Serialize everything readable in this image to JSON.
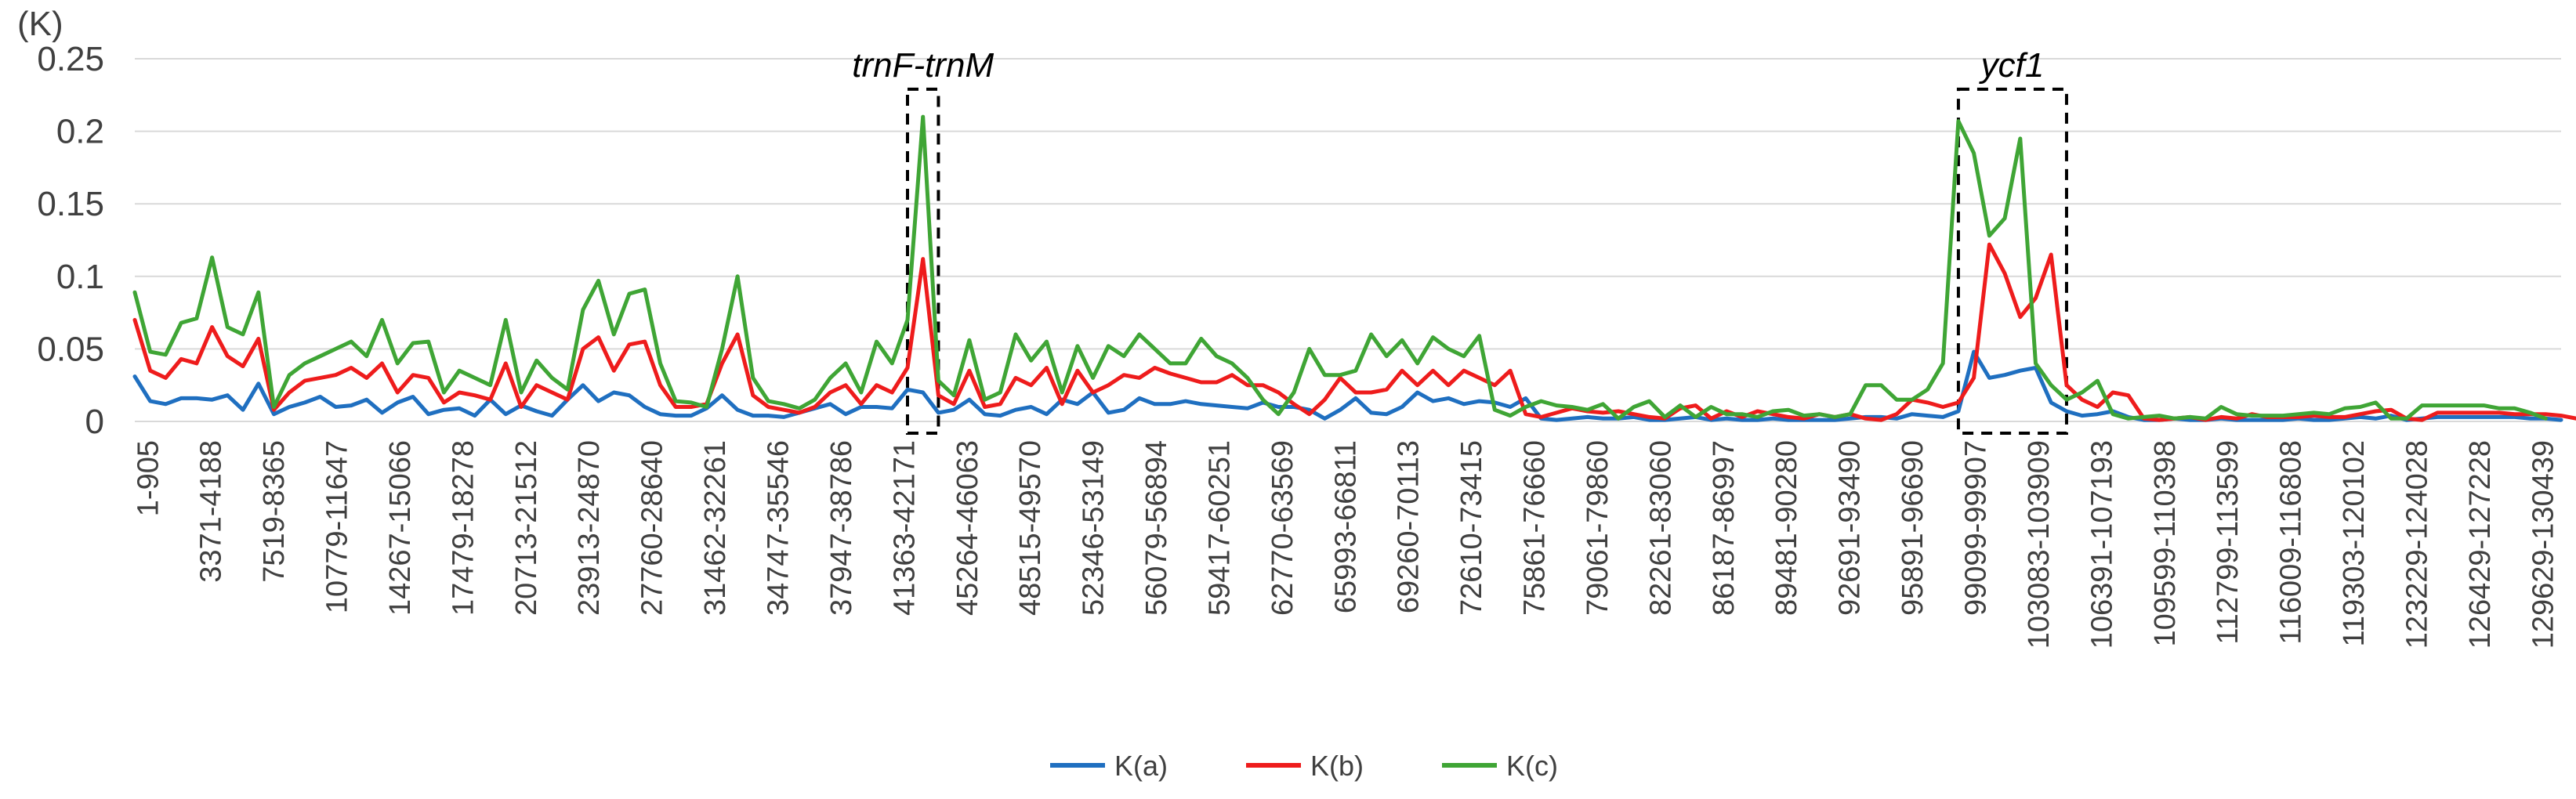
{
  "chart_data": {
    "type": "line",
    "y_unit_label": "(K)",
    "ylim": [
      0,
      0.25
    ],
    "yticks": [
      "0",
      "0.05",
      "0.1",
      "0.15",
      "0.2",
      "0.25"
    ],
    "grid": true,
    "legend_position": "bottom",
    "x_tick_labels": [
      "1-905",
      "3371-4188",
      "7519-8365",
      "10779-11647",
      "14267-15066",
      "17479-18278",
      "20713-21512",
      "23913-24870",
      "27760-28640",
      "31462-32261",
      "34747-35546",
      "37947-38786",
      "41363-42171",
      "45264-46063",
      "48515-49570",
      "52346-53149",
      "56079-56894",
      "59417-60251",
      "62770-63569",
      "65993-66811",
      "69260-70113",
      "72610-73415",
      "75861-76660",
      "79061-79860",
      "82261-83060",
      "86187-86997",
      "89481-90280",
      "92691-93490",
      "95891-96690",
      "99099-99907",
      "103083-103909",
      "106391-107193",
      "109599-110398",
      "112799-113599",
      "116009-116808",
      "119303-120102",
      "123229-124028",
      "126429-127228",
      "129629-130439"
    ],
    "series": [
      {
        "name": "K(a)",
        "color": "#1f6fc0",
        "values": [
          0.031,
          0.014,
          0.012,
          0.016,
          0.016,
          0.015,
          0.018,
          0.008,
          0.026,
          0.005,
          0.01,
          0.013,
          0.017,
          0.01,
          0.011,
          0.015,
          0.006,
          0.013,
          0.017,
          0.005,
          0.008,
          0.009,
          0.004,
          0.015,
          0.005,
          0.011,
          0.007,
          0.004,
          0.015,
          0.025,
          0.014,
          0.02,
          0.018,
          0.01,
          0.005,
          0.004,
          0.004,
          0.009,
          0.018,
          0.008,
          0.004,
          0.004,
          0.003,
          0.006,
          0.009,
          0.012,
          0.005,
          0.01,
          0.01,
          0.009,
          0.022,
          0.02,
          0.006,
          0.008,
          0.015,
          0.005,
          0.004,
          0.008,
          0.01,
          0.005,
          0.015,
          0.012,
          0.02,
          0.006,
          0.008,
          0.016,
          0.012,
          0.012,
          0.014,
          0.012,
          0.011,
          0.01,
          0.009,
          0.013,
          0.01,
          0.01,
          0.008,
          0.002,
          0.008,
          0.016,
          0.006,
          0.005,
          0.01,
          0.02,
          0.014,
          0.016,
          0.012,
          0.014,
          0.013,
          0.01,
          0.016,
          0.002,
          0.001,
          0.002,
          0.003,
          0.002,
          0.002,
          0.003,
          0.001,
          0.001,
          0.002,
          0.003,
          0.001,
          0.002,
          0.001,
          0.001,
          0.002,
          0.001,
          0.001,
          0.001,
          0.001,
          0.002,
          0.003,
          0.003,
          0.002,
          0.005,
          0.004,
          0.003,
          0.007,
          0.048,
          0.03,
          0.032,
          0.035,
          0.037,
          0.013,
          0.007,
          0.004,
          0.005,
          0.007,
          0.003,
          0.001,
          0.001,
          0.002,
          0.001,
          0.001,
          0.002,
          0.001,
          0.001,
          0.001,
          0.001,
          0.002,
          0.001,
          0.001,
          0.002,
          0.003,
          0.002,
          0.004,
          0.001,
          0.002,
          0.003,
          0.003,
          0.003,
          0.003,
          0.003,
          0.003,
          0.002,
          0.002,
          0.001
        ]
      },
      {
        "name": "K(b)",
        "color": "#ee1c1c",
        "values": [
          0.07,
          0.035,
          0.03,
          0.043,
          0.04,
          0.065,
          0.045,
          0.038,
          0.057,
          0.008,
          0.02,
          0.028,
          0.03,
          0.032,
          0.037,
          0.03,
          0.04,
          0.02,
          0.032,
          0.03,
          0.013,
          0.02,
          0.018,
          0.015,
          0.04,
          0.01,
          0.025,
          0.02,
          0.015,
          0.05,
          0.058,
          0.035,
          0.053,
          0.055,
          0.025,
          0.01,
          0.01,
          0.012,
          0.04,
          0.06,
          0.018,
          0.01,
          0.008,
          0.006,
          0.01,
          0.02,
          0.025,
          0.012,
          0.025,
          0.02,
          0.037,
          0.112,
          0.018,
          0.012,
          0.035,
          0.01,
          0.012,
          0.03,
          0.025,
          0.037,
          0.012,
          0.035,
          0.02,
          0.025,
          0.032,
          0.03,
          0.037,
          0.033,
          0.03,
          0.027,
          0.027,
          0.032,
          0.025,
          0.025,
          0.02,
          0.012,
          0.005,
          0.015,
          0.03,
          0.02,
          0.02,
          0.022,
          0.035,
          0.025,
          0.035,
          0.025,
          0.035,
          0.03,
          0.025,
          0.035,
          0.005,
          0.003,
          0.006,
          0.009,
          0.007,
          0.006,
          0.007,
          0.005,
          0.003,
          0.002,
          0.009,
          0.011,
          0.002,
          0.007,
          0.003,
          0.007,
          0.005,
          0.003,
          0.002,
          0.005,
          0.003,
          0.005,
          0.002,
          0.001,
          0.005,
          0.015,
          0.013,
          0.01,
          0.013,
          0.03,
          0.122,
          0.102,
          0.072,
          0.085,
          0.115,
          0.025,
          0.015,
          0.01,
          0.02,
          0.018,
          0.002,
          0.001,
          0.002,
          0.003,
          0.001,
          0.003,
          0.002,
          0.005,
          0.003,
          0.003,
          0.003,
          0.004,
          0.003,
          0.003,
          0.005,
          0.007,
          0.008,
          0.002,
          0.001,
          0.006,
          0.006,
          0.006,
          0.006,
          0.006,
          0.005,
          0.005,
          0.005,
          0.004,
          0.002
        ]
      },
      {
        "name": "K(c)",
        "color": "#3fa535",
        "values": [
          0.089,
          0.048,
          0.046,
          0.068,
          0.071,
          0.113,
          0.065,
          0.06,
          0.089,
          0.01,
          0.032,
          0.04,
          0.045,
          0.05,
          0.055,
          0.045,
          0.07,
          0.04,
          0.054,
          0.055,
          0.02,
          0.035,
          0.03,
          0.025,
          0.07,
          0.02,
          0.042,
          0.03,
          0.022,
          0.077,
          0.097,
          0.06,
          0.088,
          0.091,
          0.04,
          0.014,
          0.013,
          0.01,
          0.05,
          0.1,
          0.03,
          0.014,
          0.012,
          0.009,
          0.015,
          0.03,
          0.04,
          0.02,
          0.055,
          0.04,
          0.07,
          0.21,
          0.028,
          0.018,
          0.056,
          0.015,
          0.02,
          0.06,
          0.042,
          0.055,
          0.02,
          0.052,
          0.03,
          0.052,
          0.045,
          0.06,
          0.05,
          0.04,
          0.04,
          0.057,
          0.045,
          0.04,
          0.03,
          0.015,
          0.005,
          0.02,
          0.05,
          0.032,
          0.032,
          0.035,
          0.06,
          0.045,
          0.056,
          0.04,
          0.058,
          0.05,
          0.045,
          0.059,
          0.008,
          0.004,
          0.01,
          0.014,
          0.011,
          0.01,
          0.008,
          0.012,
          0.002,
          0.01,
          0.014,
          0.003,
          0.011,
          0.003,
          0.01,
          0.005,
          0.005,
          0.003,
          0.007,
          0.008,
          0.004,
          0.005,
          0.003,
          0.005,
          0.025,
          0.025,
          0.015,
          0.015,
          0.022,
          0.04,
          0.207,
          0.185,
          0.128,
          0.14,
          0.195,
          0.04,
          0.025,
          0.015,
          0.02,
          0.028,
          0.005,
          0.002,
          0.003,
          0.004,
          0.002,
          0.003,
          0.002,
          0.01,
          0.005,
          0.004,
          0.004,
          0.004,
          0.005,
          0.006,
          0.005,
          0.009,
          0.01,
          0.013,
          0.002,
          0.002,
          0.011,
          0.011,
          0.011,
          0.011,
          0.011,
          0.009,
          0.009,
          0.006,
          0.002
        ]
      }
    ],
    "annotations": [
      {
        "text": "trnF-trnM",
        "box_from_index": 50,
        "box_to_index": 52
      },
      {
        "text": "ycf1",
        "box_from_index": 118,
        "box_to_index": 125
      }
    ]
  }
}
